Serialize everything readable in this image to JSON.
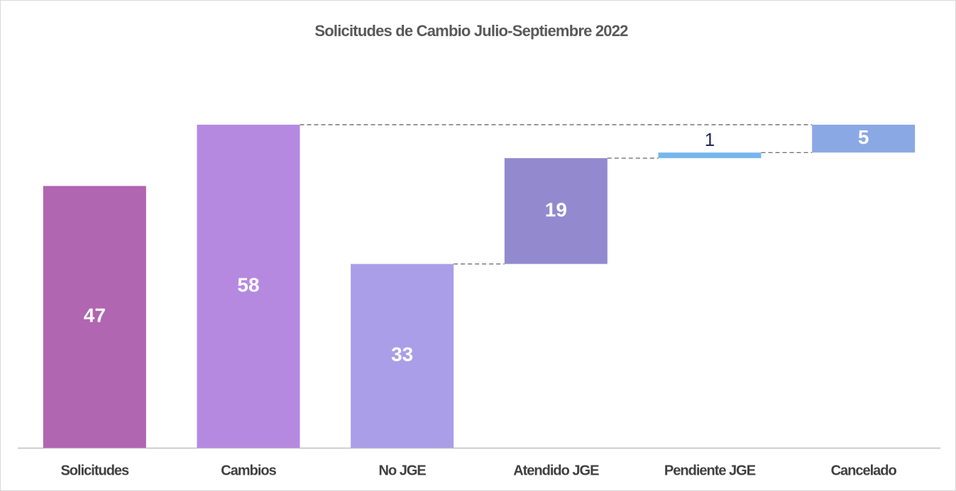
{
  "chart_data": {
    "type": "waterfall",
    "title": "Solicitudes de Cambio Julio-Septiembre 2022",
    "categories": [
      "Solicitudes",
      "Cambios",
      "No JGE",
      "Atendido JGE",
      "Pendiente JGE",
      "Cancelado"
    ],
    "values": [
      47,
      58,
      33,
      19,
      1,
      5
    ],
    "measure": [
      "absolute",
      "absolute",
      "absolute",
      "relative",
      "relative",
      "relative"
    ],
    "colors": [
      "#b066b0",
      "#b589e0",
      "#ab9ee8",
      "#9389cf",
      "#76b6ec",
      "#8aa8e4"
    ]
  }
}
